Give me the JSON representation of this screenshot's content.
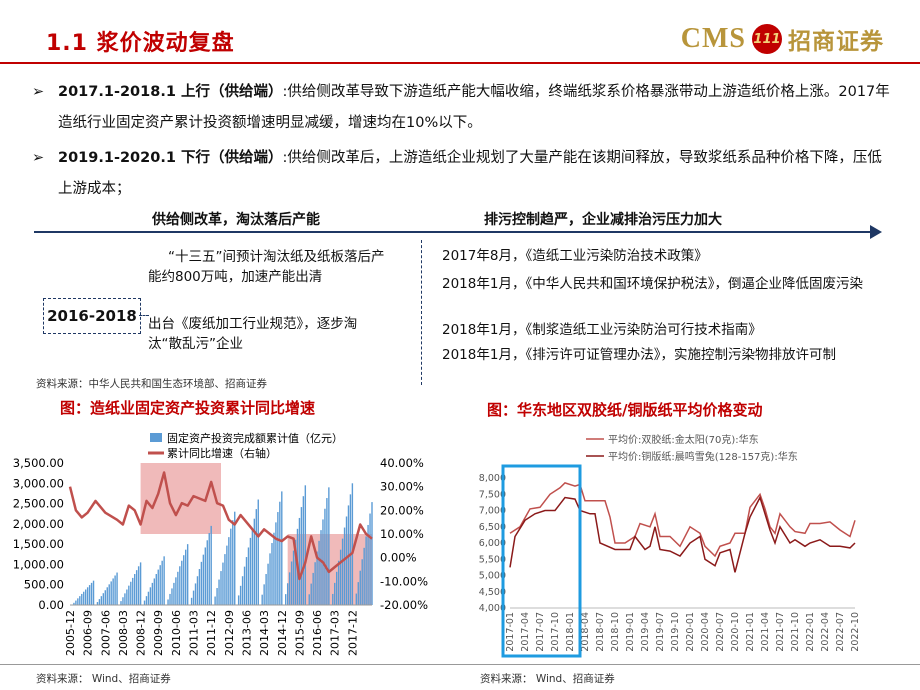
{
  "header": {
    "title": "1.1 浆价波动复盘",
    "brand_en": "CMS",
    "brand_logo": "111",
    "brand_cn": "招商证券"
  },
  "bullets": [
    {
      "marker": "➢",
      "bold": "2017.1-2018.1 上行（供给端）",
      "text": ":供给侧改革导致下游造纸产能大幅收缩，终端纸浆系价格暴涨带动上游造纸价格上涨。2017年造纸行业固定资产累计投资额增速明显减缓，增速均在10%以下。"
    },
    {
      "marker": "➢",
      "bold": "2019.1-2020.1 下行（供给端）",
      "text": ":供给侧改革后，上游造纸企业规划了大量产能在该期间释放，导致浆纸系品种价格下降，压低上游成本；"
    }
  ],
  "timeline": {
    "left_header": "供给侧改革，淘汰落后产能",
    "right_header": "排污控制趋严，企业减排治污压力加大",
    "period": "2016-2018",
    "left_items": [
      "“十三五”间预计淘汰纸及纸板落后产能约800万吨，加速产能出清",
      "出台《废纸加工行业规范》，逐步淘汰“散乱污”企业"
    ],
    "right_items": [
      "2017年8月，《造纸工业污染防治技术政策》",
      "2018年1月，《中华人民共和国环境保护税法》，倒逼企业降低固废污染",
      "2018年1月，《制浆造纸工业污染防治可行技术指南》",
      "2018年1月，《排污许可证管理办法》，实施控制污染物排放许可制"
    ]
  },
  "source_top": "资料来源：中华人民共和国生态环境部、招商证券",
  "source_left": "资料来源： Wind、招商证券",
  "source_right": "资料来源： Wind、招商证券",
  "colors": {
    "accent": "#c00000",
    "bar": "#5b9bd5",
    "line": "#c0504d",
    "highlight": "#eba3a3",
    "box": "#1e9be0"
  },
  "chart_data": [
    {
      "type": "bar+line",
      "title": "图：造纸业固定资产投资累计同比增速",
      "legend": [
        "固定资产投资完成额累计值（亿元）",
        "累计同比增速（右轴）"
      ],
      "x_start": "2005-12",
      "x_end": "2018-10",
      "x_step_months": 1,
      "x_ticks": [
        "2005-12",
        "2006-09",
        "2007-06",
        "2008-03",
        "2008-12",
        "2009-09",
        "2010-06",
        "2011-03",
        "2011-12",
        "2012-09",
        "2013-06",
        "2014-03",
        "2014-12",
        "2015-09",
        "2016-06",
        "2017-03",
        "2017-12"
      ],
      "y_left": {
        "min": 0,
        "max": 3500,
        "ticks": [
          "0.00",
          "500.00",
          "1,000.00",
          "1,500.00",
          "2,000.00",
          "2,500.00",
          "3,000.00",
          "3,500.00"
        ]
      },
      "y_right": {
        "min": -20,
        "max": 40,
        "ticks": [
          "-20.00%",
          "-10.00%",
          "0.00%",
          "10.00%",
          "20.00%",
          "30.00%",
          "40.00%"
        ]
      },
      "bar_year_end": [
        {
          "year": 2006,
          "value": 600
        },
        {
          "year": 2007,
          "value": 800
        },
        {
          "year": 2008,
          "value": 1050
        },
        {
          "year": 2009,
          "value": 1200
        },
        {
          "year": 2010,
          "value": 1500
        },
        {
          "year": 2011,
          "value": 1950
        },
        {
          "year": 2012,
          "value": 2300
        },
        {
          "year": 2013,
          "value": 2600
        },
        {
          "year": 2014,
          "value": 2800
        },
        {
          "year": 2015,
          "value": 2950
        },
        {
          "year": 2016,
          "value": 2900
        },
        {
          "year": 2017,
          "value": 3000
        },
        {
          "year": 2018,
          "value": 3100
        }
      ],
      "yoy_series": [
        {
          "date": "2005-12",
          "value": 30
        },
        {
          "date": "2006-03",
          "value": 20
        },
        {
          "date": "2006-06",
          "value": 17
        },
        {
          "date": "2006-09",
          "value": 19
        },
        {
          "date": "2007-01",
          "value": 24
        },
        {
          "date": "2007-06",
          "value": 19
        },
        {
          "date": "2007-12",
          "value": 16
        },
        {
          "date": "2008-03",
          "value": 14
        },
        {
          "date": "2008-06",
          "value": 22
        },
        {
          "date": "2008-09",
          "value": 20
        },
        {
          "date": "2008-12",
          "value": 14
        },
        {
          "date": "2009-03",
          "value": 24
        },
        {
          "date": "2009-06",
          "value": 21
        },
        {
          "date": "2009-09",
          "value": 27
        },
        {
          "date": "2009-12",
          "value": 36
        },
        {
          "date": "2010-03",
          "value": 23
        },
        {
          "date": "2010-06",
          "value": 18
        },
        {
          "date": "2010-09",
          "value": 23
        },
        {
          "date": "2010-12",
          "value": 22
        },
        {
          "date": "2011-03",
          "value": 26
        },
        {
          "date": "2011-06",
          "value": 25
        },
        {
          "date": "2011-09",
          "value": 24
        },
        {
          "date": "2011-12",
          "value": 32
        },
        {
          "date": "2012-03",
          "value": 23
        },
        {
          "date": "2012-06",
          "value": 22
        },
        {
          "date": "2012-09",
          "value": 16
        },
        {
          "date": "2012-12",
          "value": 14
        },
        {
          "date": "2013-03",
          "value": 18
        },
        {
          "date": "2013-06",
          "value": 15
        },
        {
          "date": "2013-09",
          "value": 12
        },
        {
          "date": "2013-12",
          "value": 9
        },
        {
          "date": "2014-03",
          "value": 12
        },
        {
          "date": "2014-06",
          "value": 10
        },
        {
          "date": "2014-09",
          "value": 8
        },
        {
          "date": "2014-12",
          "value": 7
        },
        {
          "date": "2015-03",
          "value": 9
        },
        {
          "date": "2015-06",
          "value": 8
        },
        {
          "date": "2015-09",
          "value": -9
        },
        {
          "date": "2015-12",
          "value": -2
        },
        {
          "date": "2016-03",
          "value": 9
        },
        {
          "date": "2016-06",
          "value": 0
        },
        {
          "date": "2016-09",
          "value": -2
        },
        {
          "date": "2016-12",
          "value": -6
        },
        {
          "date": "2017-03",
          "value": -4
        },
        {
          "date": "2017-06",
          "value": -2
        },
        {
          "date": "2017-09",
          "value": 0
        },
        {
          "date": "2017-12",
          "value": 2
        },
        {
          "date": "2018-04",
          "value": 14
        },
        {
          "date": "2018-07",
          "value": 10
        },
        {
          "date": "2018-10",
          "value": 8
        }
      ],
      "highlights": [
        {
          "from": "2008-12",
          "to": "2012-05",
          "y_from": 10,
          "y_to": 40
        },
        {
          "from": "2015-03",
          "to": "2018-10",
          "y_from": -20,
          "y_to": 10
        }
      ]
    },
    {
      "type": "line",
      "title": "图：华东地区双胶纸/铜版纸平均价格变动",
      "x_start": "2017-01",
      "x_end": "2022-10",
      "x_ticks": [
        "2017-01",
        "2017-04",
        "2017-07",
        "2017-10",
        "2018-01",
        "2018-04",
        "2018-07",
        "2018-10",
        "2019-01",
        "2019-04",
        "2019-07",
        "2019-10",
        "2020-01",
        "2020-04",
        "2020-07",
        "2020-10",
        "2021-01",
        "2021-04",
        "2021-07",
        "2021-10",
        "2022-01",
        "2022-04",
        "2022-07",
        "2022-10"
      ],
      "y": {
        "min": 4000,
        "max": 8000,
        "ticks": [
          "4,000",
          "4,500",
          "5,000",
          "5,500",
          "6,000",
          "6,500",
          "7,000",
          "7,500",
          "8,000"
        ]
      },
      "highlight_box": {
        "from": "2017-01",
        "to": "2018-02"
      },
      "series": [
        {
          "name": "平均价:双胶纸:金太阳(70克):华东",
          "data": [
            [
              "2017-01",
              6300
            ],
            [
              "2017-03",
              6500
            ],
            [
              "2017-05",
              7050
            ],
            [
              "2017-07",
              7100
            ],
            [
              "2017-09",
              7500
            ],
            [
              "2017-11",
              7700
            ],
            [
              "2017-12",
              7850
            ],
            [
              "2018-02",
              7750
            ],
            [
              "2018-03",
              7800
            ],
            [
              "2018-04",
              7300
            ],
            [
              "2018-06",
              7300
            ],
            [
              "2018-08",
              7300
            ],
            [
              "2018-09",
              6800
            ],
            [
              "2018-10",
              6000
            ],
            [
              "2018-12",
              6000
            ],
            [
              "2019-02",
              6200
            ],
            [
              "2019-03",
              6600
            ],
            [
              "2019-05",
              6500
            ],
            [
              "2019-06",
              6900
            ],
            [
              "2019-07",
              6200
            ],
            [
              "2019-09",
              6200
            ],
            [
              "2019-11",
              5900
            ],
            [
              "2020-01",
              6500
            ],
            [
              "2020-03",
              6300
            ],
            [
              "2020-04",
              5900
            ],
            [
              "2020-06",
              5600
            ],
            [
              "2020-07",
              5900
            ],
            [
              "2020-09",
              6000
            ],
            [
              "2020-10",
              6300
            ],
            [
              "2020-12",
              6300
            ],
            [
              "2021-01",
              7100
            ],
            [
              "2021-03",
              7500
            ],
            [
              "2021-04",
              7050
            ],
            [
              "2021-05",
              6500
            ],
            [
              "2021-06",
              6300
            ],
            [
              "2021-07",
              6900
            ],
            [
              "2021-09",
              6500
            ],
            [
              "2021-10",
              6350
            ],
            [
              "2021-12",
              6300
            ],
            [
              "2022-01",
              6600
            ],
            [
              "2022-03",
              6600
            ],
            [
              "2022-05",
              6650
            ],
            [
              "2022-07",
              6400
            ],
            [
              "2022-09",
              6200
            ],
            [
              "2022-10",
              6700
            ]
          ]
        },
        {
          "name": "平均价:铜版纸:晨鸣雪兔(128-157克):华东",
          "data": [
            [
              "2017-01",
              5250
            ],
            [
              "2017-02",
              6200
            ],
            [
              "2017-04",
              6700
            ],
            [
              "2017-06",
              6900
            ],
            [
              "2017-08",
              7000
            ],
            [
              "2017-10",
              7000
            ],
            [
              "2017-12",
              7400
            ],
            [
              "2018-02",
              7350
            ],
            [
              "2018-03",
              7000
            ],
            [
              "2018-05",
              6900
            ],
            [
              "2018-06",
              6900
            ],
            [
              "2018-07",
              6000
            ],
            [
              "2018-10",
              5800
            ],
            [
              "2019-01",
              5800
            ],
            [
              "2019-02",
              6200
            ],
            [
              "2019-04",
              5800
            ],
            [
              "2019-05",
              5900
            ],
            [
              "2019-06",
              6500
            ],
            [
              "2019-07",
              5800
            ],
            [
              "2019-09",
              5750
            ],
            [
              "2019-11",
              5600
            ],
            [
              "2020-01",
              6000
            ],
            [
              "2020-03",
              6200
            ],
            [
              "2020-04",
              5500
            ],
            [
              "2020-06",
              5300
            ],
            [
              "2020-07",
              5700
            ],
            [
              "2020-09",
              5800
            ],
            [
              "2020-10",
              5100
            ],
            [
              "2020-12",
              6300
            ],
            [
              "2021-01",
              6800
            ],
            [
              "2021-03",
              7400
            ],
            [
              "2021-05",
              6400
            ],
            [
              "2021-06",
              6000
            ],
            [
              "2021-07",
              6500
            ],
            [
              "2021-09",
              6000
            ],
            [
              "2021-10",
              6100
            ],
            [
              "2021-12",
              5900
            ],
            [
              "2022-01",
              6000
            ],
            [
              "2022-03",
              6100
            ],
            [
              "2022-05",
              5900
            ],
            [
              "2022-07",
              5900
            ],
            [
              "2022-09",
              5850
            ],
            [
              "2022-10",
              6000
            ]
          ]
        }
      ]
    }
  ]
}
